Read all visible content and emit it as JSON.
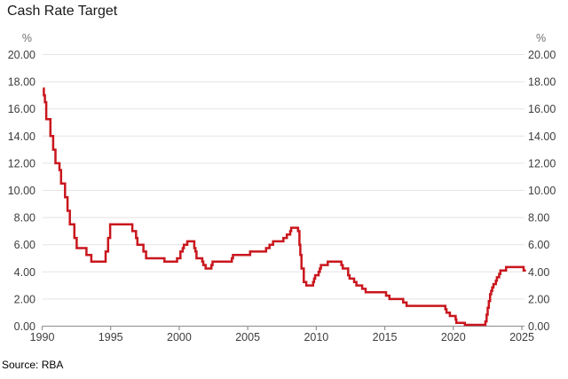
{
  "source": "Source: RBA",
  "chart_data": {
    "type": "line",
    "title": "Cash Rate Target",
    "subtitle": "",
    "xlabel": "",
    "ylabel_left": "%",
    "ylabel_right": "%",
    "legend": [],
    "grid": "horizontal",
    "line_color": "#C9161D",
    "grid_color": "#E4E4E4",
    "axis_color": "#999999",
    "tick_label_color": "#3D3D3D",
    "unit_label_color": "#707070",
    "xlim": [
      1990,
      2025.3
    ],
    "ylim": [
      0,
      20
    ],
    "x_ticks": [
      1990,
      1995,
      2000,
      2005,
      2010,
      2015,
      2020,
      2025
    ],
    "x_tick_labels": [
      "1990",
      "1995",
      "2000",
      "2005",
      "2010",
      "2015",
      "2020",
      "2025"
    ],
    "y_ticks": [
      0,
      2,
      4,
      6,
      8,
      10,
      12,
      14,
      16,
      18,
      20
    ],
    "y_tick_labels": [
      "0.00",
      "2.00",
      "4.00",
      "6.00",
      "8.00",
      "10.00",
      "12.00",
      "14.00",
      "16.00",
      "18.00",
      "20.00"
    ],
    "series": [
      {
        "name": "Cash Rate Target",
        "step": true,
        "points": [
          [
            1990.05,
            17.5
          ],
          [
            1990.12,
            17.0
          ],
          [
            1990.2,
            16.5
          ],
          [
            1990.3,
            15.25
          ],
          [
            1990.6,
            14.0
          ],
          [
            1990.8,
            13.0
          ],
          [
            1990.97,
            12.0
          ],
          [
            1991.26,
            11.5
          ],
          [
            1991.38,
            10.5
          ],
          [
            1991.67,
            9.5
          ],
          [
            1991.85,
            8.5
          ],
          [
            1992.02,
            7.5
          ],
          [
            1992.35,
            6.5
          ],
          [
            1992.52,
            5.75
          ],
          [
            1993.23,
            5.25
          ],
          [
            1993.59,
            4.75
          ],
          [
            1994.63,
            5.5
          ],
          [
            1994.81,
            6.5
          ],
          [
            1994.96,
            7.5
          ],
          [
            1996.58,
            7.0
          ],
          [
            1996.85,
            6.5
          ],
          [
            1996.95,
            6.0
          ],
          [
            1997.39,
            5.5
          ],
          [
            1997.58,
            5.0
          ],
          [
            1998.92,
            4.75
          ],
          [
            1999.84,
            5.0
          ],
          [
            2000.09,
            5.5
          ],
          [
            2000.26,
            5.75
          ],
          [
            2000.34,
            6.0
          ],
          [
            2000.59,
            6.25
          ],
          [
            2001.1,
            5.75
          ],
          [
            2001.18,
            5.5
          ],
          [
            2001.26,
            5.0
          ],
          [
            2001.68,
            4.75
          ],
          [
            2001.76,
            4.5
          ],
          [
            2001.93,
            4.25
          ],
          [
            2002.35,
            4.5
          ],
          [
            2002.43,
            4.75
          ],
          [
            2003.84,
            5.0
          ],
          [
            2003.92,
            5.25
          ],
          [
            2005.17,
            5.5
          ],
          [
            2006.34,
            5.75
          ],
          [
            2006.59,
            6.0
          ],
          [
            2006.85,
            6.25
          ],
          [
            2007.6,
            6.5
          ],
          [
            2007.85,
            6.75
          ],
          [
            2008.1,
            7.0
          ],
          [
            2008.17,
            7.25
          ],
          [
            2008.67,
            7.0
          ],
          [
            2008.77,
            6.0
          ],
          [
            2008.84,
            5.25
          ],
          [
            2008.92,
            4.25
          ],
          [
            2009.09,
            3.25
          ],
          [
            2009.27,
            3.0
          ],
          [
            2009.77,
            3.25
          ],
          [
            2009.84,
            3.5
          ],
          [
            2009.92,
            3.75
          ],
          [
            2010.17,
            4.0
          ],
          [
            2010.26,
            4.25
          ],
          [
            2010.34,
            4.5
          ],
          [
            2010.84,
            4.75
          ],
          [
            2011.83,
            4.5
          ],
          [
            2011.93,
            4.25
          ],
          [
            2012.33,
            3.75
          ],
          [
            2012.43,
            3.5
          ],
          [
            2012.76,
            3.25
          ],
          [
            2012.93,
            3.0
          ],
          [
            2013.35,
            2.75
          ],
          [
            2013.6,
            2.5
          ],
          [
            2015.09,
            2.25
          ],
          [
            2015.34,
            2.0
          ],
          [
            2016.34,
            1.75
          ],
          [
            2016.59,
            1.5
          ],
          [
            2019.42,
            1.25
          ],
          [
            2019.5,
            1.0
          ],
          [
            2019.75,
            0.75
          ],
          [
            2020.17,
            0.5
          ],
          [
            2020.22,
            0.25
          ],
          [
            2020.84,
            0.1
          ],
          [
            2022.34,
            0.35
          ],
          [
            2022.43,
            0.85
          ],
          [
            2022.51,
            1.35
          ],
          [
            2022.59,
            1.85
          ],
          [
            2022.68,
            2.35
          ],
          [
            2022.76,
            2.6
          ],
          [
            2022.84,
            2.85
          ],
          [
            2022.93,
            3.1
          ],
          [
            2023.1,
            3.35
          ],
          [
            2023.18,
            3.6
          ],
          [
            2023.34,
            3.85
          ],
          [
            2023.43,
            4.1
          ],
          [
            2023.85,
            4.35
          ],
          [
            2025.13,
            4.1
          ]
        ]
      }
    ]
  }
}
